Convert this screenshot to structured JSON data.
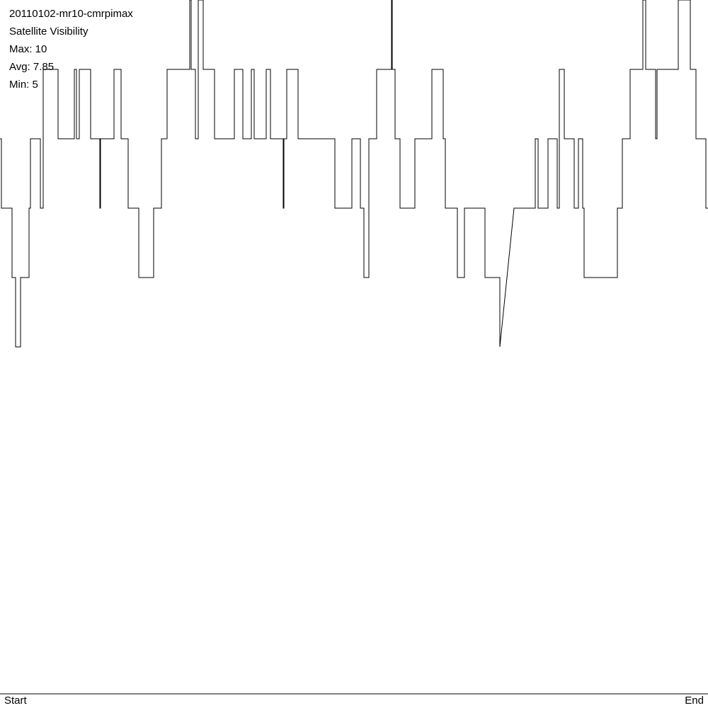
{
  "chart_data": {
    "type": "line",
    "title": "20110102-mr10-cmrpimax",
    "subtitle": "Satellite Visibility",
    "stats": [
      "Max: 10",
      "Avg: 7.85",
      "Min: 5"
    ],
    "start_label": "Start",
    "end_label": "End",
    "color": "#000000",
    "xlim": [
      0,
      1000
    ],
    "ylim": [
      0,
      10
    ],
    "x": [
      0,
      2,
      2,
      17,
      17,
      22,
      22,
      29,
      29,
      41,
      41,
      43,
      43,
      57,
      57,
      61,
      61,
      82,
      82,
      105,
      105,
      108,
      108,
      112,
      112,
      128,
      128,
      141,
      141,
      142,
      142,
      161,
      161,
      171,
      171,
      181,
      181,
      196,
      196,
      217,
      217,
      228,
      228,
      236,
      236,
      268,
      268,
      270,
      270,
      276,
      276,
      280,
      280,
      287,
      287,
      303,
      303,
      331,
      331,
      343,
      343,
      355,
      355,
      359,
      359,
      376,
      376,
      382,
      382,
      400,
      400,
      401,
      401,
      405,
      405,
      421,
      421,
      473,
      473,
      497,
      497,
      509,
      509,
      514,
      514,
      521,
      521,
      532,
      532,
      553,
      553,
      554,
      554,
      558,
      558,
      565,
      565,
      586,
      586,
      610,
      610,
      626,
      626,
      629,
      629,
      646,
      646,
      656,
      656,
      685,
      685,
      706,
      706,
      726,
      756,
      756,
      760,
      760,
      774,
      774,
      787,
      787,
      790,
      790,
      797,
      797,
      811,
      811,
      817,
      817,
      823,
      823,
      825,
      825,
      872,
      872,
      879,
      879,
      890,
      890,
      908,
      908,
      912,
      912,
      926,
      926,
      928,
      928,
      958,
      958,
      975,
      975,
      983,
      983,
      997,
      997,
      1000
    ],
    "values": [
      8,
      8,
      7,
      7,
      6,
      6,
      5,
      5,
      6,
      6,
      7,
      7,
      8,
      8,
      7,
      7,
      9,
      9,
      8,
      8,
      9,
      9,
      8,
      8,
      9,
      9,
      8,
      8,
      7,
      7,
      8,
      8,
      9,
      9,
      8,
      8,
      7,
      7,
      6,
      6,
      7,
      7,
      8,
      8,
      9,
      9,
      10,
      10,
      9,
      9,
      8,
      8,
      10,
      10,
      9,
      9,
      8,
      8,
      9,
      9,
      8,
      8,
      9,
      9,
      8,
      8,
      9,
      9,
      8,
      8,
      7,
      7,
      8,
      8,
      9,
      9,
      8,
      8,
      7,
      7,
      8,
      8,
      7,
      7,
      6,
      6,
      8,
      8,
      9,
      9,
      10,
      10,
      9,
      9,
      8,
      8,
      7,
      7,
      8,
      8,
      9,
      9,
      8,
      8,
      7,
      7,
      6,
      6,
      7,
      7,
      6,
      6,
      5,
      7,
      7,
      8,
      8,
      7,
      7,
      8,
      8,
      7,
      7,
      9,
      9,
      8,
      8,
      7,
      7,
      8,
      8,
      7,
      7,
      6,
      6,
      7,
      7,
      8,
      8,
      9,
      9,
      10,
      10,
      9,
      9,
      8,
      8,
      9,
      9,
      10,
      10,
      9,
      9,
      8,
      8,
      7,
      7
    ]
  }
}
